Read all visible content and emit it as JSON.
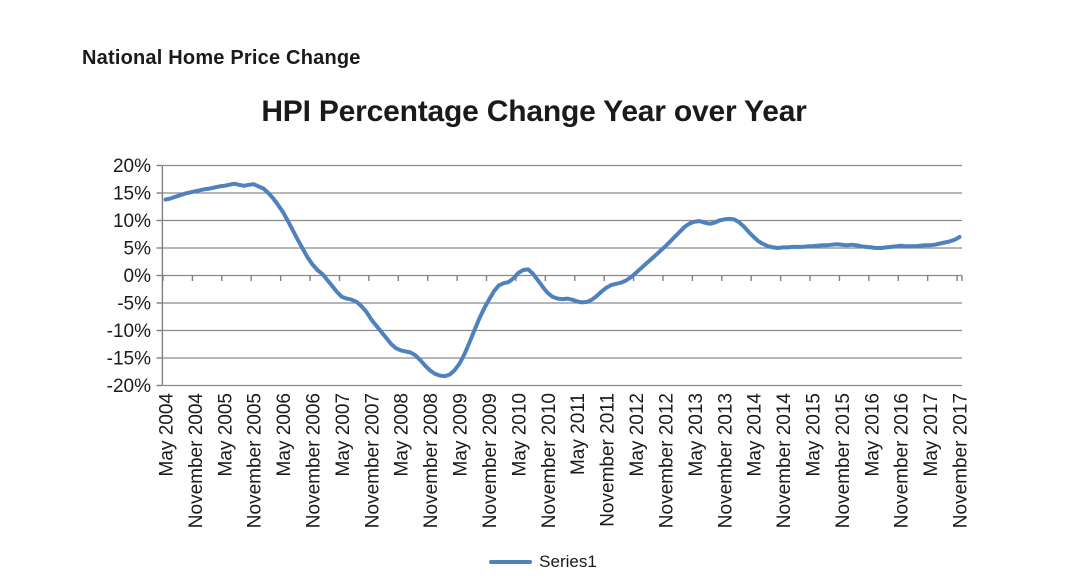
{
  "page": {
    "header_title": "National Home Price Change"
  },
  "chart_data": {
    "type": "line",
    "title": "HPI Percentage Change Year over Year",
    "legend_label": "Series1",
    "legend_position": "bottom",
    "grid": "horizontal",
    "line_color": "#4F81BD",
    "gridline_color": "#8A8A8A",
    "axis_color": "#7F7F7F",
    "ylim": [
      -20,
      20
    ],
    "y_ticks": [
      20,
      15,
      10,
      5,
      0,
      -5,
      -10,
      -15,
      -20
    ],
    "y_tick_labels": [
      "20%",
      "15%",
      "10%",
      "5%",
      "0%",
      "-5%",
      "-10%",
      "-15%",
      "-20%"
    ],
    "x_frequency": "monthly",
    "x_start": "May 2004",
    "x_end": "November 2017",
    "x_tick_interval_months": 6,
    "x_tick_labels": [
      "May 2004",
      "November 2004",
      "May 2005",
      "November 2005",
      "May 2006",
      "November 2006",
      "May 2007",
      "November 2007",
      "May 2008",
      "November 2008",
      "May 2009",
      "November 2009",
      "May 2010",
      "November 2010",
      "May 2011",
      "November 2011",
      "May 2012",
      "November 2012",
      "May 2013",
      "November 2013",
      "May 2014",
      "November 2014",
      "May 2015",
      "November 2015",
      "May 2016",
      "November 2016",
      "May 2017",
      "November 2017"
    ],
    "series": [
      {
        "name": "Series1",
        "color": "#4F81BD",
        "values": [
          13.8,
          14.0,
          14.3,
          14.6,
          14.9,
          15.1,
          15.3,
          15.5,
          15.7,
          15.8,
          16.0,
          16.2,
          16.3,
          16.5,
          16.7,
          16.5,
          16.3,
          16.5,
          16.6,
          16.2,
          15.8,
          15.0,
          14.0,
          12.8,
          11.5,
          9.9,
          8.2,
          6.5,
          4.9,
          3.3,
          2.0,
          1.0,
          0.3,
          -0.8,
          -1.9,
          -3.0,
          -3.9,
          -4.2,
          -4.4,
          -4.8,
          -5.6,
          -6.6,
          -8.0,
          -9.1,
          -10.2,
          -11.3,
          -12.4,
          -13.2,
          -13.6,
          -13.8,
          -14.0,
          -14.5,
          -15.4,
          -16.4,
          -17.3,
          -17.9,
          -18.2,
          -18.3,
          -18.0,
          -17.2,
          -16.0,
          -14.3,
          -12.2,
          -10.0,
          -7.9,
          -6.0,
          -4.4,
          -2.9,
          -1.8,
          -1.4,
          -1.2,
          -0.5,
          0.5,
          1.0,
          1.1,
          0.3,
          -0.9,
          -2.1,
          -3.2,
          -3.9,
          -4.2,
          -4.3,
          -4.2,
          -4.4,
          -4.7,
          -4.9,
          -4.8,
          -4.4,
          -3.7,
          -2.9,
          -2.2,
          -1.7,
          -1.5,
          -1.3,
          -0.9,
          -0.3,
          0.5,
          1.3,
          2.1,
          2.9,
          3.7,
          4.5,
          5.3,
          6.2,
          7.1,
          8.0,
          8.9,
          9.5,
          9.8,
          9.9,
          9.6,
          9.4,
          9.6,
          10.0,
          10.2,
          10.3,
          10.2,
          9.7,
          8.9,
          7.9,
          7.0,
          6.2,
          5.7,
          5.3,
          5.1,
          5.0,
          5.1,
          5.1,
          5.2,
          5.2,
          5.2,
          5.3,
          5.3,
          5.4,
          5.5,
          5.5,
          5.6,
          5.7,
          5.6,
          5.5,
          5.6,
          5.5,
          5.3,
          5.2,
          5.1,
          5.0,
          5.0,
          5.1,
          5.2,
          5.3,
          5.4,
          5.3,
          5.3,
          5.3,
          5.4,
          5.5,
          5.5,
          5.6,
          5.8,
          6.0,
          6.2,
          6.5,
          7.0
        ]
      }
    ]
  }
}
